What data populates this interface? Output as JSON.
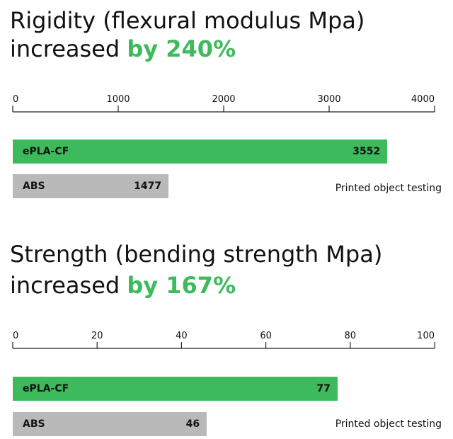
{
  "chart_data": [
    {
      "type": "bar",
      "orientation": "horizontal",
      "title": "Rigidity (flexural modulus Mpa)",
      "subtitle_prefix": "increased ",
      "subtitle_highlight": "by 240%",
      "xlim": [
        0,
        4000
      ],
      "ticks": [
        "0",
        "1000",
        "2000",
        "3000",
        "4000"
      ],
      "categories": [
        "ePLA-CF",
        "ABS"
      ],
      "values": [
        3552,
        1477
      ],
      "value_labels": [
        "3552",
        "1477"
      ],
      "colors": [
        "#3dbb5c",
        "#b9b9b9"
      ],
      "note": "Printed object testing"
    },
    {
      "type": "bar",
      "orientation": "horizontal",
      "title": "Strength (bending strength Mpa)",
      "subtitle_prefix": "increased ",
      "subtitle_highlight": "by 167%",
      "xlim": [
        0,
        100
      ],
      "ticks": [
        "0",
        "20",
        "40",
        "60",
        "80",
        "100"
      ],
      "categories": [
        "ePLA-CF",
        "ABS"
      ],
      "values": [
        77,
        46
      ],
      "value_labels": [
        "77",
        "46"
      ],
      "colors": [
        "#3dbb5c",
        "#b9b9b9"
      ],
      "note": "Printed object testing"
    }
  ],
  "colors": {
    "accent": "#3dbb5c",
    "neutral": "#b9b9b9"
  }
}
